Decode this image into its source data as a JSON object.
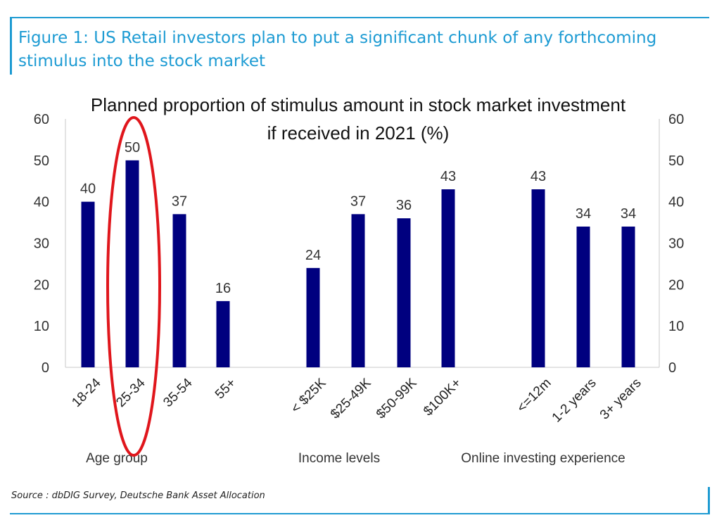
{
  "figure": {
    "title": "Figure 1: US Retail investors plan to put a significant chunk of any forthcoming stimulus into the stock market",
    "source": "Source : dbDIG Survey, Deutsche Bank Asset Allocation"
  },
  "colors": {
    "bar": "#00007f",
    "accent": "#1d9bd3",
    "highlight_circle": "#e0161c",
    "axis_text": "#333333"
  },
  "chart_data": {
    "type": "bar",
    "title": [
      "Planned proportion of stimulus amount in stock market investment",
      "if received in 2021 (%)"
    ],
    "xlabel": "",
    "ylabel": "",
    "ylim": [
      0,
      60
    ],
    "yticks": [
      0,
      10,
      20,
      30,
      40,
      50,
      60
    ],
    "secondary_y_axis": true,
    "grid": false,
    "legend": "none",
    "groups": [
      {
        "name": "Age group",
        "categories": [
          "18-24",
          "25-34",
          "35-54",
          "55+"
        ],
        "values": [
          40,
          50,
          37,
          16
        ]
      },
      {
        "name": "Income levels",
        "categories": [
          "< $25K",
          "$25-49K",
          "$50-99K",
          "$100K+"
        ],
        "values": [
          24,
          37,
          36,
          43
        ]
      },
      {
        "name": "Online investing experience",
        "categories": [
          "<=12m",
          "1-2 years",
          "3+ years"
        ],
        "values": [
          43,
          34,
          34
        ]
      }
    ],
    "annotations": [
      {
        "type": "ellipse",
        "highlights": "25-34",
        "color": "red"
      }
    ]
  }
}
